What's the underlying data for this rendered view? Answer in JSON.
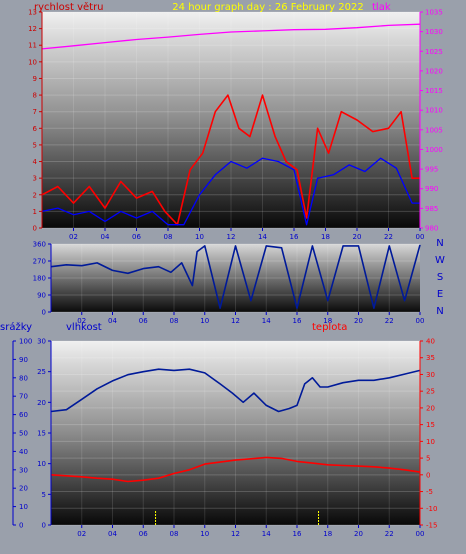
{
  "colors": {
    "wind": "#ff0000",
    "gust": "#0000ff",
    "pressure": "#ff00ff",
    "wind_dir": "#001a99",
    "humidity": "#001a99",
    "temperature": "#ff0000",
    "rain": "#ffff00",
    "title": "#ffff00",
    "axis_blue": "#0000cc",
    "axis_magenta": "#ff00ff",
    "axis_red": "#ff0000"
  },
  "chart_data": [
    {
      "type": "line",
      "title": "24 hour graph day : 26 February 2022",
      "left_axis_label": "rychlost větru",
      "right_axis_label": "tlak",
      "left_ticks": [
        "0",
        "1",
        "2",
        "3",
        "4",
        "5",
        "6",
        "7",
        "8",
        "9",
        "10",
        "11",
        "12",
        "13"
      ],
      "right_ticks": [
        "980",
        "985",
        "990",
        "995",
        "1000",
        "1005",
        "1010",
        "1015",
        "1020",
        "1025",
        "1030",
        "1035"
      ],
      "x_ticks": [
        "02",
        "04",
        "06",
        "08",
        "10",
        "12",
        "14",
        "16",
        "18",
        "20",
        "22",
        "00"
      ],
      "ylim_left": [
        0,
        13
      ],
      "ylim_right": [
        980,
        1035
      ],
      "x_range_hours": [
        0,
        24
      ],
      "series": [
        {
          "name": "pressure",
          "color_key": "pressure",
          "axis": "right",
          "x": [
            0,
            2,
            4,
            6,
            8,
            10,
            12,
            14,
            16,
            18,
            20,
            22,
            24
          ],
          "y": [
            1025.6,
            1026.4,
            1027.2,
            1028.0,
            1028.6,
            1029.3,
            1029.9,
            1030.2,
            1030.5,
            1030.6,
            1031.0,
            1031.6,
            1031.9
          ]
        },
        {
          "name": "wind",
          "color_key": "wind",
          "axis": "left",
          "x": [
            0,
            1,
            2,
            3,
            4,
            5,
            6,
            7,
            7.8,
            8.6,
            9.4,
            10.2,
            11,
            11.8,
            12.5,
            13.2,
            14,
            14.8,
            15.5,
            16.2,
            16.8,
            17.5,
            18.2,
            19,
            20,
            21,
            22,
            22.8,
            23.5,
            24
          ],
          "y": [
            2.0,
            2.5,
            1.5,
            2.5,
            1.2,
            2.8,
            1.8,
            2.2,
            1.0,
            0.2,
            3.5,
            4.5,
            7.0,
            8.0,
            6.0,
            5.5,
            8.0,
            5.5,
            4.0,
            3.5,
            0.6,
            6.0,
            4.5,
            7.0,
            6.5,
            5.8,
            6.0,
            7.0,
            3.0,
            3.0
          ]
        },
        {
          "name": "gust",
          "color_key": "gust",
          "axis": "left",
          "x": [
            0,
            1,
            2,
            3,
            4,
            5,
            6,
            7,
            8,
            9,
            10,
            11,
            12,
            13,
            14,
            15,
            16,
            16.8,
            17.5,
            18.5,
            19.5,
            20.5,
            21.5,
            22.5,
            23.5,
            24
          ],
          "y": [
            1.0,
            1.2,
            0.8,
            1.0,
            0.4,
            1.0,
            0.6,
            1.0,
            0.2,
            0.2,
            2.0,
            3.2,
            4.0,
            3.6,
            4.2,
            4.0,
            3.5,
            0.2,
            3.0,
            3.2,
            3.8,
            3.4,
            4.2,
            3.6,
            1.5,
            1.5
          ]
        }
      ]
    },
    {
      "type": "line",
      "left_ticks": [
        "0",
        "90",
        "180",
        "270",
        "360"
      ],
      "right_labels": [
        "N",
        "W",
        "S",
        "E",
        "N"
      ],
      "ylim": [
        0,
        360
      ],
      "x_ticks": [
        "02",
        "04",
        "06",
        "08",
        "10",
        "12",
        "14",
        "16",
        "18",
        "20",
        "22",
        "00"
      ],
      "series": [
        {
          "name": "wind_direction",
          "color_key": "wind_dir",
          "x": [
            0,
            1,
            2,
            3,
            4,
            5,
            6,
            7,
            7.8,
            8.5,
            9.2,
            9.5,
            10,
            11,
            12,
            13,
            14,
            15,
            16,
            17,
            18,
            19,
            20,
            21,
            22,
            23,
            24
          ],
          "y": [
            240,
            250,
            245,
            260,
            220,
            205,
            230,
            240,
            210,
            260,
            140,
            320,
            350,
            20,
            350,
            60,
            350,
            340,
            20,
            350,
            60,
            350,
            350,
            20,
            350,
            60,
            355
          ]
        }
      ]
    },
    {
      "type": "line",
      "rain_axis_label": "srážky",
      "humidity_axis_label": "vlhkost",
      "temperature_axis_label": "teplota",
      "rain_ticks": [
        "0",
        "10",
        "20",
        "30",
        "40",
        "50",
        "60",
        "70",
        "80",
        "90",
        "100"
      ],
      "humidity_ticks": [
        "0",
        "5",
        "10",
        "15",
        "20",
        "25",
        "30"
      ],
      "temperature_ticks": [
        "-15",
        "-10",
        "-5",
        "0",
        "5",
        "10",
        "15",
        "20",
        "25",
        "30",
        "35",
        "40"
      ],
      "x_ticks": [
        "02",
        "04",
        "06",
        "08",
        "10",
        "12",
        "14",
        "16",
        "18",
        "20",
        "22",
        "00"
      ],
      "ylim_rain": [
        0,
        100
      ],
      "ylim_humidity": [
        0,
        30
      ],
      "ylim_temperature": [
        -15,
        40
      ],
      "series": [
        {
          "name": "humidity",
          "color_key": "humidity",
          "axis": "humidity",
          "x": [
            0,
            1,
            2,
            3,
            4,
            5,
            6,
            7,
            8,
            9,
            10,
            11,
            11.8,
            12.5,
            13.2,
            14,
            14.8,
            15.5,
            16,
            16.5,
            17,
            17.5,
            18,
            19,
            20,
            21,
            22,
            23,
            24
          ],
          "y": [
            18.5,
            18.8,
            20.5,
            22.2,
            23.5,
            24.5,
            25.0,
            25.4,
            25.2,
            25.4,
            24.8,
            23.0,
            21.5,
            20.0,
            21.5,
            19.5,
            18.5,
            19.0,
            19.5,
            23.0,
            24.0,
            22.5,
            22.5,
            23.2,
            23.6,
            23.6,
            24.0,
            24.6,
            25.2
          ]
        },
        {
          "name": "temperature",
          "color_key": "temperature",
          "axis": "temperature",
          "x": [
            0,
            1,
            2,
            3,
            4,
            5,
            6,
            7,
            8,
            9,
            10,
            11,
            12,
            13,
            14,
            15,
            16,
            17,
            18,
            19,
            20,
            21,
            22,
            23,
            24
          ],
          "y": [
            0.0,
            -0.3,
            -0.6,
            -1.0,
            -1.3,
            -2.0,
            -1.6,
            -1.0,
            0.4,
            1.5,
            3.2,
            3.8,
            4.4,
            4.8,
            5.2,
            4.9,
            4.0,
            3.5,
            3.0,
            2.8,
            2.6,
            2.4,
            2.0,
            1.5,
            0.8
          ]
        },
        {
          "name": "rain_events",
          "color_key": "rain",
          "axis": "rain",
          "x": [
            6.8,
            17.4
          ],
          "y": [
            8,
            8
          ]
        }
      ]
    }
  ]
}
